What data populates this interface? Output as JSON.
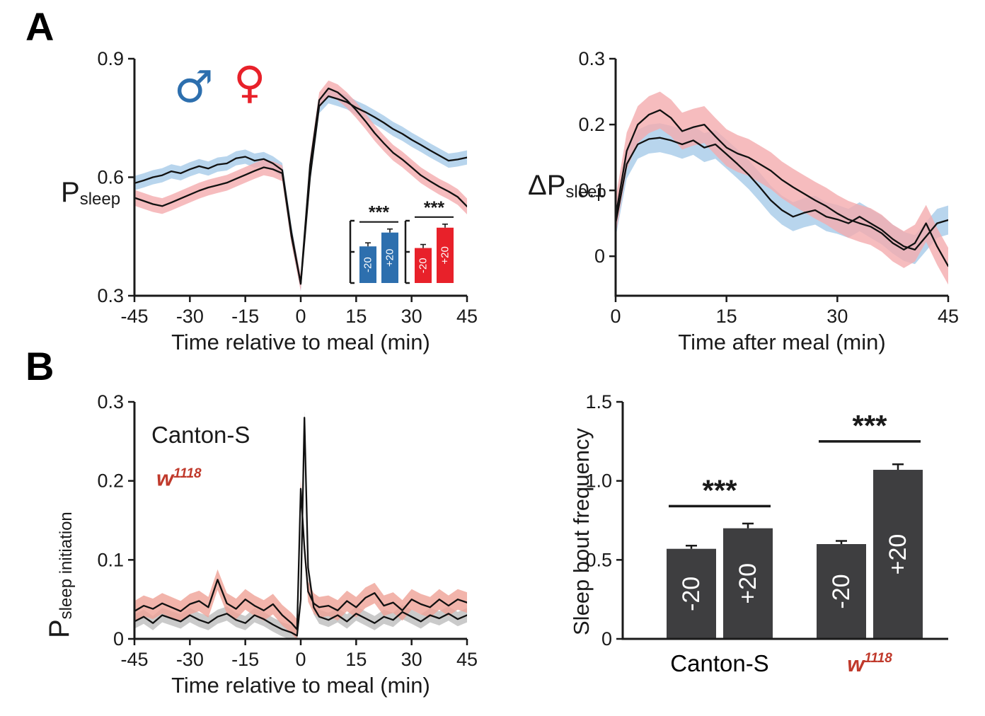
{
  "figure": {
    "background": "#ffffff",
    "panels": {
      "a": {
        "label": "A"
      },
      "b": {
        "label": "B"
      }
    },
    "legend": {
      "male_symbol": "♂",
      "female_symbol": "♀"
    },
    "colors": {
      "male_blue": "#2d6fae",
      "female_red": "#e8212a",
      "line": "#111111",
      "bar_dark": "#3e3e40",
      "annotation_red": "#c0392b"
    }
  },
  "chart_data": [
    {
      "id": "a_left",
      "type": "line",
      "xlabel": "Time relative to meal (min)",
      "ylabel": {
        "main": "P",
        "sub": "sleep"
      },
      "xlim": [
        -45,
        45
      ],
      "ylim": [
        0.3,
        0.9
      ],
      "xticks": [
        -45,
        -30,
        -15,
        0,
        15,
        30,
        45
      ],
      "xticklabels": [
        "-45",
        "-30",
        "-15",
        "0",
        "15",
        "30",
        "45"
      ],
      "yticks": [
        0.3,
        0.6,
        0.9
      ],
      "yticklabels": [
        "0.3",
        "0.6",
        "0.9"
      ],
      "grid": false,
      "x": [
        -45,
        -42.5,
        -40,
        -37.5,
        -35,
        -32.5,
        -30,
        -27.5,
        -25,
        -22.5,
        -20,
        -17.5,
        -15,
        -12.5,
        -10,
        -7.5,
        -5,
        -2.5,
        0,
        2.5,
        5,
        7.5,
        10,
        12.5,
        15,
        17.5,
        20,
        22.5,
        25,
        27.5,
        30,
        32.5,
        35,
        37.5,
        40,
        42.5,
        45
      ],
      "series": [
        {
          "name": "male",
          "band_color": "#a6cbe8",
          "err": 0.018,
          "y": [
            0.585,
            0.592,
            0.6,
            0.605,
            0.615,
            0.61,
            0.62,
            0.628,
            0.622,
            0.632,
            0.635,
            0.648,
            0.652,
            0.642,
            0.646,
            0.635,
            0.618,
            0.46,
            0.33,
            0.6,
            0.78,
            0.805,
            0.798,
            0.79,
            0.776,
            0.765,
            0.752,
            0.738,
            0.722,
            0.71,
            0.695,
            0.682,
            0.668,
            0.655,
            0.642,
            0.645,
            0.65
          ]
        },
        {
          "name": "female",
          "band_color": "#f4abae",
          "err": 0.02,
          "y": [
            0.548,
            0.54,
            0.532,
            0.527,
            0.536,
            0.546,
            0.556,
            0.566,
            0.574,
            0.58,
            0.586,
            0.596,
            0.606,
            0.616,
            0.625,
            0.62,
            0.61,
            0.45,
            0.332,
            0.63,
            0.795,
            0.825,
            0.815,
            0.795,
            0.77,
            0.742,
            0.712,
            0.686,
            0.662,
            0.645,
            0.625,
            0.605,
            0.59,
            0.576,
            0.564,
            0.55,
            0.526
          ]
        }
      ],
      "inset": {
        "groups": [
          {
            "name": "male",
            "color": "#2d6fae",
            "sig": "***",
            "bars": [
              {
                "label": "-20",
                "value": 0.45
              },
              {
                "label": "+20",
                "value": 0.62
              }
            ]
          },
          {
            "name": "female",
            "color": "#e8212a",
            "sig": "***",
            "bars": [
              {
                "label": "-20",
                "value": 0.43
              },
              {
                "label": "+20",
                "value": 0.68
              }
            ]
          }
        ]
      }
    },
    {
      "id": "a_right",
      "type": "line",
      "xlabel": "Time after meal (min)",
      "ylabel": {
        "main": "ΔP",
        "sub": "sleep"
      },
      "xlim": [
        0,
        45
      ],
      "ylim": [
        -0.06,
        0.3
      ],
      "xticks": [
        0,
        15,
        30,
        45
      ],
      "xticklabels": [
        "0",
        "15",
        "30",
        "45"
      ],
      "yticks": [
        0,
        0.1,
        0.2,
        0.3
      ],
      "yticklabels": [
        "0",
        "0.1",
        "0.2",
        "0.3"
      ],
      "grid": false,
      "x": [
        0,
        1.5,
        3,
        4.5,
        6,
        7.5,
        9,
        10.5,
        12,
        13.5,
        15,
        16.5,
        18,
        19.5,
        21,
        22.5,
        24,
        25.5,
        27,
        28.5,
        30,
        31.5,
        33,
        34.5,
        36,
        37.5,
        39,
        40.5,
        42,
        43.5,
        45
      ],
      "series": [
        {
          "name": "male",
          "band_color": "#a6cbe8",
          "err": 0.022,
          "y": [
            0.05,
            0.14,
            0.17,
            0.178,
            0.18,
            0.176,
            0.17,
            0.176,
            0.165,
            0.17,
            0.155,
            0.14,
            0.124,
            0.105,
            0.085,
            0.07,
            0.06,
            0.066,
            0.07,
            0.06,
            0.056,
            0.05,
            0.06,
            0.05,
            0.04,
            0.026,
            0.015,
            0.01,
            0.03,
            0.05,
            0.055
          ]
        },
        {
          "name": "female",
          "band_color": "#f4abae",
          "err": 0.028,
          "y": [
            0.06,
            0.16,
            0.2,
            0.215,
            0.222,
            0.21,
            0.19,
            0.196,
            0.2,
            0.182,
            0.165,
            0.156,
            0.15,
            0.14,
            0.13,
            0.116,
            0.105,
            0.095,
            0.085,
            0.076,
            0.065,
            0.056,
            0.05,
            0.045,
            0.035,
            0.02,
            0.01,
            0.02,
            0.05,
            0.015,
            -0.015
          ]
        }
      ]
    },
    {
      "id": "b_left",
      "type": "line",
      "xlabel": "Time relative to meal (min)",
      "ylabel": {
        "main": "P",
        "sub": "sleep initiation"
      },
      "xlim": [
        -45,
        45
      ],
      "ylim": [
        0,
        0.3
      ],
      "xticks": [
        -45,
        -30,
        -15,
        0,
        15,
        30,
        45
      ],
      "xticklabels": [
        "-45",
        "-30",
        "-15",
        "0",
        "15",
        "30",
        "45"
      ],
      "yticks": [
        0,
        0.1,
        0.2,
        0.3
      ],
      "yticklabels": [
        "0",
        "0.1",
        "0.2",
        "0.3"
      ],
      "grid": false,
      "annotations": [
        {
          "text": "Canton-S",
          "color": "#1a1a1a"
        },
        {
          "text": "w",
          "sup": "1118",
          "color": "#c0392b"
        }
      ],
      "series": [
        {
          "name": "canton_s",
          "band_color": "#bdbdbd",
          "err": 0.009,
          "x": [
            -45,
            -42.5,
            -40,
            -37.5,
            -35,
            -32.5,
            -30,
            -27.5,
            -25,
            -22.5,
            -20,
            -17.5,
            -15,
            -12.5,
            -10,
            -7.5,
            -5,
            -2.5,
            -1,
            0,
            1,
            2,
            3.5,
            5,
            7.5,
            10,
            12.5,
            15,
            17.5,
            20,
            22.5,
            25,
            27.5,
            30,
            32.5,
            35,
            37.5,
            40,
            42.5,
            45
          ],
          "y": [
            0.022,
            0.028,
            0.02,
            0.03,
            0.026,
            0.022,
            0.03,
            0.024,
            0.02,
            0.028,
            0.032,
            0.024,
            0.02,
            0.03,
            0.025,
            0.018,
            0.012,
            0.008,
            0.004,
            0.05,
            0.28,
            0.09,
            0.04,
            0.028,
            0.024,
            0.03,
            0.022,
            0.032,
            0.026,
            0.02,
            0.028,
            0.024,
            0.034,
            0.028,
            0.022,
            0.03,
            0.026,
            0.032,
            0.025,
            0.03
          ]
        },
        {
          "name": "w1118",
          "band_color": "#efa196",
          "err": 0.013,
          "x": [
            -45,
            -42.5,
            -40,
            -37.5,
            -35,
            -32.5,
            -30,
            -27.5,
            -25,
            -22.5,
            -20,
            -17.5,
            -15,
            -12.5,
            -10,
            -7.5,
            -5,
            -2.5,
            -1,
            0,
            1,
            2,
            3.5,
            5,
            7.5,
            10,
            12.5,
            15,
            17.5,
            20,
            22.5,
            25,
            27.5,
            30,
            32.5,
            35,
            37.5,
            40,
            42.5,
            45
          ],
          "y": [
            0.035,
            0.042,
            0.038,
            0.045,
            0.04,
            0.035,
            0.044,
            0.048,
            0.04,
            0.075,
            0.045,
            0.038,
            0.05,
            0.042,
            0.036,
            0.044,
            0.03,
            0.02,
            0.012,
            0.19,
            0.115,
            0.06,
            0.045,
            0.04,
            0.042,
            0.036,
            0.048,
            0.04,
            0.052,
            0.058,
            0.042,
            0.046,
            0.036,
            0.05,
            0.044,
            0.04,
            0.05,
            0.042,
            0.05,
            0.046
          ]
        }
      ]
    },
    {
      "id": "b_right",
      "type": "bar",
      "ylabel": "Sleep bout frequency",
      "ylim": [
        0,
        1.5
      ],
      "yticks": [
        0,
        0.5,
        1,
        1.5
      ],
      "yticklabels": [
        "0",
        "0.5",
        "1.0",
        "1.5"
      ],
      "grid": false,
      "bar_color": "#3e3e40",
      "groups": [
        {
          "name": "Canton-S",
          "name_color": "#000000",
          "name_italic": false,
          "sig": "***",
          "sig_y": 0.84,
          "bars": [
            {
              "label": "-20",
              "value": 0.57,
              "err": 0.02
            },
            {
              "label": "+20",
              "value": 0.7,
              "err": 0.03
            }
          ]
        },
        {
          "name": "w",
          "name_sup": "1118",
          "name_color": "#c0392b",
          "name_italic": true,
          "sig": "***",
          "sig_y": 1.25,
          "bars": [
            {
              "label": "-20",
              "value": 0.6,
              "err": 0.02
            },
            {
              "label": "+20",
              "value": 1.07,
              "err": 0.035
            }
          ]
        }
      ]
    }
  ]
}
